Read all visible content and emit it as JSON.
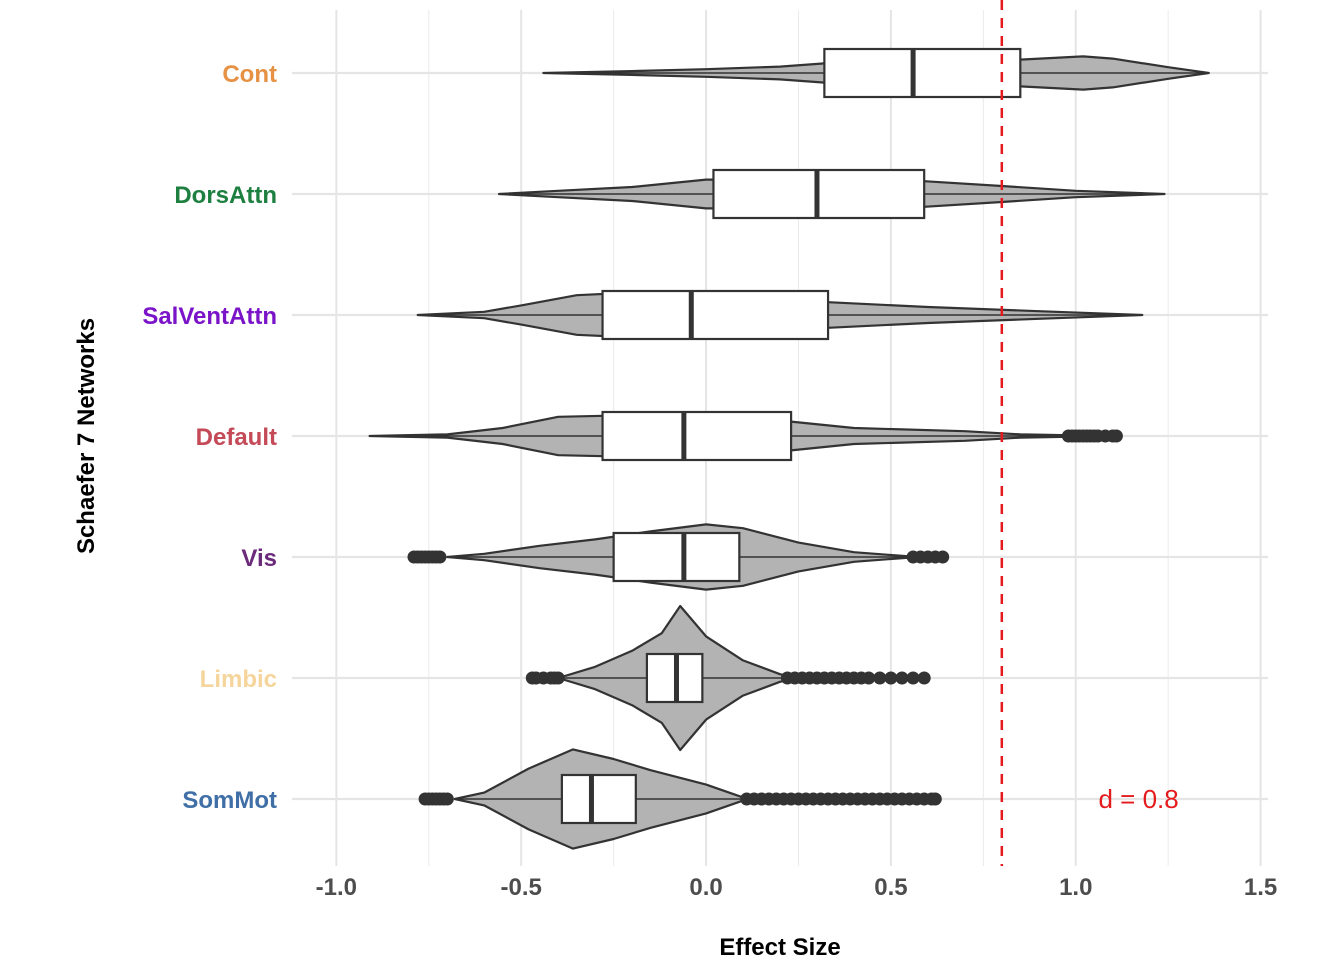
{
  "chart_data": {
    "type": "violin",
    "xlabel": "Effect Size",
    "ylabel": "Schaefer 7 Networks",
    "xlim": [
      -1.12,
      1.52
    ],
    "x_ticks": [
      -1.0,
      -0.5,
      0.0,
      0.5,
      1.0,
      1.5
    ],
    "x_tick_labels": [
      "-1.0",
      "-0.5",
      "0.0",
      "0.5",
      "1.0",
      "1.5"
    ],
    "grid": true,
    "legend": "none",
    "reference_line": {
      "x": 0.8,
      "style": "dashed",
      "color": "#e41a1c"
    },
    "annotation": {
      "text": "d = 0.8",
      "x": 1.17,
      "category": "SomMot",
      "color": "#e41a1c"
    },
    "violin_fill": "#b3b3b3",
    "outline_color": "#333333",
    "categories": [
      "Cont",
      "DorsAttn",
      "SalVentAttn",
      "Default",
      "Vis",
      "Limbic",
      "SomMot"
    ],
    "category_colors": {
      "Cont": "#e69143",
      "DorsAttn": "#1e8040",
      "SalVentAttn": "#7b14c8",
      "Default": "#c44a58",
      "Vis": "#6b2a7a",
      "Limbic": "#f5d59c",
      "SomMot": "#3f6fa6"
    },
    "series": [
      {
        "category": "Cont",
        "box": {
          "q1": 0.32,
          "median": 0.56,
          "q3": 0.85
        },
        "density": [
          [
            -0.44,
            0.0
          ],
          [
            -0.2,
            0.06
          ],
          [
            0.0,
            0.12
          ],
          [
            0.2,
            0.2
          ],
          [
            0.32,
            0.3
          ],
          [
            0.5,
            0.38
          ],
          [
            0.7,
            0.38
          ],
          [
            0.85,
            0.42
          ],
          [
            1.02,
            0.52
          ],
          [
            1.1,
            0.45
          ],
          [
            1.25,
            0.18
          ],
          [
            1.36,
            0.0
          ]
        ],
        "outliers": []
      },
      {
        "category": "DorsAttn",
        "box": {
          "q1": 0.02,
          "median": 0.3,
          "q3": 0.59
        },
        "density": [
          [
            -0.56,
            0.0
          ],
          [
            -0.4,
            0.1
          ],
          [
            -0.2,
            0.22
          ],
          [
            0.0,
            0.45
          ],
          [
            0.2,
            0.45
          ],
          [
            0.4,
            0.42
          ],
          [
            0.59,
            0.4
          ],
          [
            0.8,
            0.25
          ],
          [
            1.0,
            0.1
          ],
          [
            1.24,
            0.0
          ]
        ],
        "outliers": []
      },
      {
        "category": "SalVentAttn",
        "box": {
          "q1": -0.28,
          "median": -0.04,
          "q3": 0.33
        },
        "density": [
          [
            -0.78,
            0.0
          ],
          [
            -0.6,
            0.1
          ],
          [
            -0.5,
            0.3
          ],
          [
            -0.35,
            0.62
          ],
          [
            -0.2,
            0.7
          ],
          [
            0.0,
            0.45
          ],
          [
            0.2,
            0.4
          ],
          [
            0.33,
            0.4
          ],
          [
            0.6,
            0.25
          ],
          [
            0.9,
            0.12
          ],
          [
            1.18,
            0.0
          ]
        ],
        "outliers": []
      },
      {
        "category": "Default",
        "box": {
          "q1": -0.28,
          "median": -0.06,
          "q3": 0.23
        },
        "density": [
          [
            -0.91,
            0.0
          ],
          [
            -0.7,
            0.05
          ],
          [
            -0.55,
            0.25
          ],
          [
            -0.4,
            0.6
          ],
          [
            -0.2,
            0.65
          ],
          [
            0.0,
            0.5
          ],
          [
            0.2,
            0.45
          ],
          [
            0.23,
            0.45
          ],
          [
            0.4,
            0.25
          ],
          [
            0.7,
            0.15
          ],
          [
            0.85,
            0.05
          ],
          [
            1.0,
            0.02
          ]
        ],
        "outliers": [
          0.98,
          0.99,
          1.0,
          1.01,
          1.02,
          1.03,
          1.04,
          1.05,
          1.06,
          1.08,
          1.1,
          1.11
        ]
      },
      {
        "category": "Vis",
        "box": {
          "q1": -0.25,
          "median": -0.06,
          "q3": 0.09
        },
        "density": [
          [
            -0.7,
            0.0
          ],
          [
            -0.6,
            0.1
          ],
          [
            -0.45,
            0.35
          ],
          [
            -0.3,
            0.55
          ],
          [
            -0.15,
            0.8
          ],
          [
            0.0,
            1.02
          ],
          [
            0.1,
            0.9
          ],
          [
            0.25,
            0.45
          ],
          [
            0.4,
            0.15
          ],
          [
            0.55,
            0.02
          ],
          [
            0.6,
            0.0
          ]
        ],
        "outliers": [
          -0.79,
          -0.78,
          -0.77,
          -0.76,
          -0.75,
          -0.74,
          -0.73,
          -0.72,
          0.56,
          0.58,
          0.6,
          0.62,
          0.64
        ]
      },
      {
        "category": "Limbic",
        "box": {
          "q1": -0.16,
          "median": -0.08,
          "q3": -0.01
        },
        "density": [
          [
            -0.4,
            0.0
          ],
          [
            -0.3,
            0.35
          ],
          [
            -0.2,
            0.85
          ],
          [
            -0.12,
            1.4
          ],
          [
            -0.07,
            2.25
          ],
          [
            0.0,
            1.3
          ],
          [
            0.1,
            0.55
          ],
          [
            0.2,
            0.12
          ],
          [
            0.25,
            0.0
          ]
        ],
        "outliers": [
          -0.47,
          -0.46,
          -0.44,
          -0.42,
          -0.41,
          -0.4,
          0.22,
          0.24,
          0.26,
          0.28,
          0.3,
          0.32,
          0.34,
          0.36,
          0.38,
          0.4,
          0.42,
          0.44,
          0.47,
          0.5,
          0.53,
          0.56,
          0.59
        ]
      },
      {
        "category": "SomMot",
        "box": {
          "q1": -0.39,
          "median": -0.31,
          "q3": -0.19
        },
        "density": [
          [
            -0.68,
            0.0
          ],
          [
            -0.6,
            0.2
          ],
          [
            -0.48,
            0.95
          ],
          [
            -0.36,
            1.55
          ],
          [
            -0.25,
            1.25
          ],
          [
            -0.15,
            0.9
          ],
          [
            0.0,
            0.45
          ],
          [
            0.1,
            0.05
          ],
          [
            0.12,
            0.0
          ]
        ],
        "outliers": [
          -0.76,
          -0.75,
          -0.74,
          -0.73,
          -0.72,
          -0.71,
          -0.7,
          0.11,
          0.13,
          0.15,
          0.17,
          0.19,
          0.21,
          0.23,
          0.25,
          0.27,
          0.29,
          0.31,
          0.33,
          0.35,
          0.37,
          0.39,
          0.41,
          0.43,
          0.45,
          0.47,
          0.49,
          0.51,
          0.53,
          0.55,
          0.57,
          0.59,
          0.61,
          0.62
        ]
      }
    ]
  }
}
